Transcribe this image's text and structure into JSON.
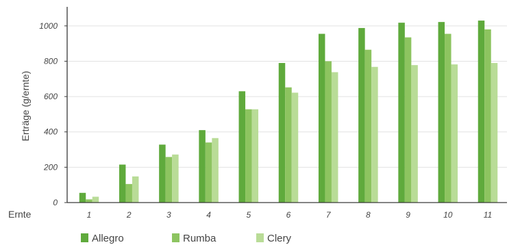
{
  "chart_data": {
    "type": "bar",
    "title": "",
    "xlabel": "Ernte",
    "ylabel": "Erträge (g/ernte)",
    "categories": [
      "1",
      "2",
      "3",
      "4",
      "5",
      "6",
      "7",
      "8",
      "9",
      "10",
      "11"
    ],
    "series": [
      {
        "name": "Allegro",
        "color": "#5faa3c",
        "values": [
          55,
          215,
          328,
          410,
          630,
          790,
          955,
          988,
          1018,
          1022,
          1030
        ]
      },
      {
        "name": "Rumba",
        "color": "#8dc460",
        "values": [
          18,
          105,
          258,
          340,
          528,
          652,
          800,
          865,
          935,
          955,
          980
        ]
      },
      {
        "name": "Clery",
        "color": "#b9dc97",
        "values": [
          33,
          148,
          272,
          365,
          528,
          622,
          738,
          768,
          778,
          782,
          790
        ]
      }
    ],
    "ylim": [
      0,
      1100
    ],
    "yticks": [
      0,
      200,
      400,
      600,
      800,
      1000
    ],
    "grid": true,
    "legend_position": "bottom"
  }
}
